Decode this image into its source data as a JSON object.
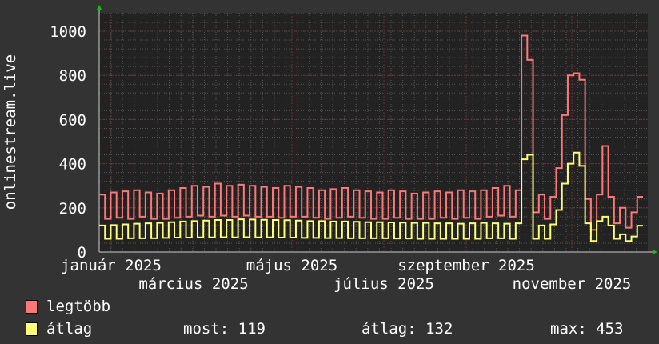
{
  "chart_data": {
    "type": "line",
    "ylabel": "onlinestream.live",
    "ylim": [
      0,
      1080
    ],
    "yticks": [
      0,
      200,
      400,
      600,
      800,
      1000
    ],
    "xticks": [
      "január 2025",
      "március 2025",
      "május 2025",
      "július 2025",
      "szeptember 2025",
      "november 2025"
    ],
    "grid": true,
    "colors": {
      "background": "#333333",
      "canvas": "#222222",
      "grid": "#555555",
      "major_grid": "#663333",
      "arrow": "#00cc00"
    },
    "series": [
      {
        "name": "legtöbb",
        "color": "#ff7777",
        "values": [
          260,
          150,
          270,
          155,
          275,
          150,
          280,
          160,
          270,
          150,
          265,
          150,
          280,
          155,
          290,
          160,
          300,
          165,
          295,
          160,
          310,
          165,
          300,
          160,
          305,
          165,
          300,
          160,
          295,
          160,
          290,
          155,
          300,
          160,
          295,
          160,
          290,
          155,
          280,
          150,
          285,
          155,
          290,
          160,
          280,
          155,
          275,
          150,
          270,
          150,
          280,
          155,
          275,
          150,
          265,
          150,
          270,
          150,
          275,
          155,
          270,
          150,
          280,
          155,
          275,
          150,
          280,
          160,
          290,
          165,
          300,
          160,
          280,
          980,
          870,
          180,
          260,
          150,
          250,
          380,
          620,
          800,
          810,
          780,
          240,
          100,
          260,
          480,
          250,
          130,
          200,
          110,
          180,
          250
        ]
      },
      {
        "name": "átlag",
        "color": "#ffff77",
        "values": [
          120,
          60,
          122,
          60,
          125,
          62,
          128,
          62,
          130,
          62,
          132,
          64,
          135,
          65,
          138,
          65,
          140,
          66,
          142,
          66,
          145,
          67,
          145,
          66,
          148,
          67,
          147,
          66,
          146,
          66,
          145,
          65,
          144,
          65,
          142,
          64,
          140,
          64,
          140,
          63,
          138,
          63,
          138,
          62,
          137,
          62,
          135,
          62,
          135,
          62,
          134,
          61,
          133,
          61,
          132,
          60,
          132,
          60,
          130,
          60,
          130,
          60,
          128,
          60,
          130,
          60,
          132,
          62,
          130,
          62,
          128,
          60,
          130,
          420,
          440,
          60,
          120,
          60,
          125,
          190,
          310,
          400,
          450,
          390,
          130,
          50,
          140,
          160,
          120,
          60,
          80,
          50,
          70,
          119
        ]
      }
    ]
  },
  "legend": {
    "max_label": "legtöbb",
    "avg_label": "átlag",
    "most": "most: 119",
    "atlag": "átlag: 132",
    "max": "max: 453"
  }
}
